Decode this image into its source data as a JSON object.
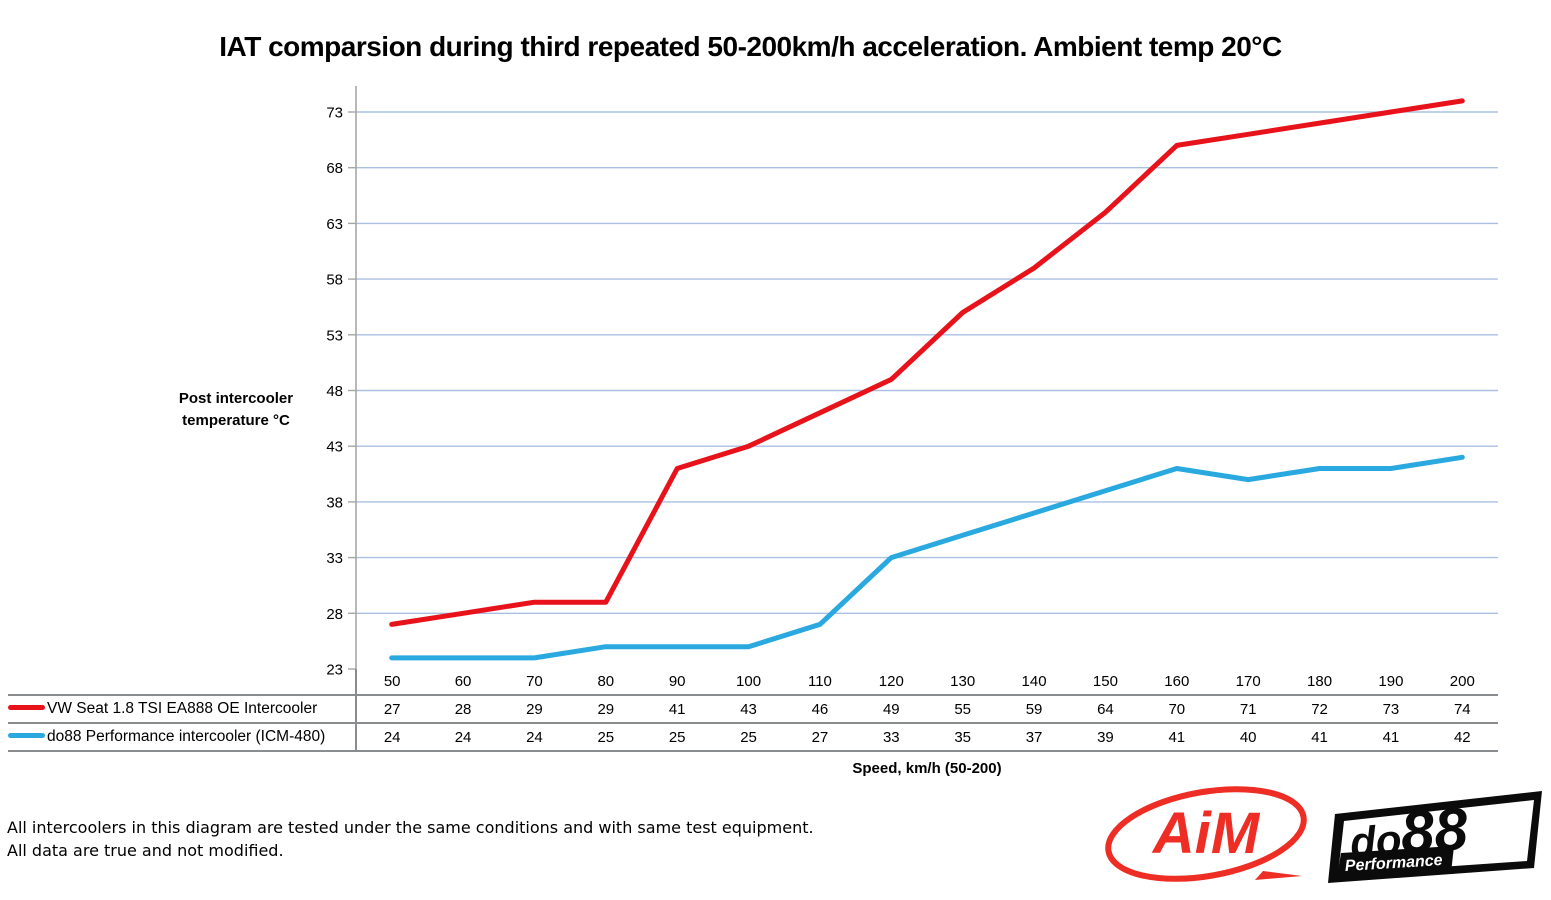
{
  "chart_data": {
    "type": "line",
    "title": "IAT comparsion during third repeated 50-200km/h acceleration. Ambient temp 20°C",
    "x": [
      50,
      60,
      70,
      80,
      90,
      100,
      110,
      120,
      130,
      140,
      150,
      160,
      170,
      180,
      190,
      200
    ],
    "series": [
      {
        "name": "VW Seat 1.8 TSI EA888 OE Intercooler",
        "color": "#e8121b",
        "values": [
          27,
          28,
          29,
          29,
          41,
          43,
          46,
          49,
          55,
          59,
          64,
          70,
          71,
          72,
          73,
          74
        ]
      },
      {
        "name": "do88 Performance intercooler (ICM-480)",
        "color": "#2aa9e0",
        "values": [
          24,
          24,
          24,
          25,
          25,
          25,
          27,
          33,
          35,
          37,
          39,
          41,
          40,
          41,
          41,
          42
        ]
      }
    ],
    "ylabel": "Post intercooler temperature °C",
    "xlabel": "Speed, km/h (50-200)",
    "yticks": [
      23,
      28,
      33,
      38,
      43,
      48,
      53,
      58,
      63,
      68,
      73
    ],
    "ylim": [
      23,
      75.3
    ],
    "grid": "horizontal",
    "legend_position": "table-left",
    "gridline_color": "#a9c0e4",
    "axis_color": "#a6a6a6",
    "table_border_color": "#8a8d90"
  },
  "footnote": {
    "line1": "All intercoolers in this diagram are tested under the same conditions and with same test equipment.",
    "line2": "All data are true and not modified."
  },
  "logos": {
    "aim_text": "AiM",
    "aim_color": "#ee2d24",
    "do88_text_small": "do",
    "do88_text_big": "88",
    "do88_sub_text": "Performance"
  }
}
